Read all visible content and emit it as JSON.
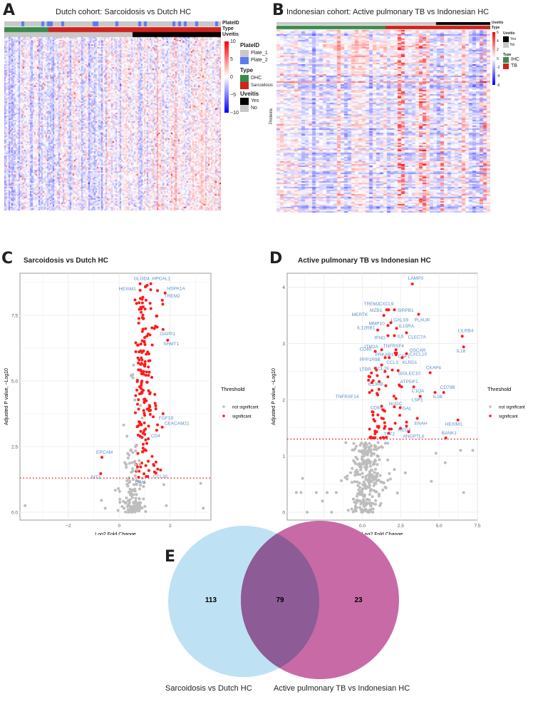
{
  "panels": {
    "a": "A",
    "b": "B",
    "c": "C",
    "d": "D",
    "e": "E"
  },
  "colors": {
    "sig": "#ff1a1a",
    "nonsig": "#bdbdbd",
    "label": "#5b8fc7",
    "heat_high": "#ff0000",
    "heat_low": "#0000ff",
    "green": "#3a8a4e",
    "red": "#d1221c",
    "black": "#000000",
    "gray": "#c8c8c8",
    "blue": "#5a7cf0",
    "venn_left": "#bfe1f4",
    "venn_right": "#c86aa6",
    "venn_overlap": "#8d5b96"
  },
  "heatmap_a": {
    "title": "Dutch cohort: Sarcoidosis vs Dutch HC",
    "annotation_rows": [
      "PlateID",
      "Type",
      "Uveitis"
    ],
    "colorbar_ticks": [
      "10",
      "5",
      "0",
      "−5",
      "−10"
    ],
    "legend": {
      "plate_title": "PlateID",
      "plate_items": [
        "Plate_1",
        "Plate_2"
      ],
      "type_title": "Type",
      "type_items": [
        "DHC",
        "Sarcoidosis"
      ],
      "uveitis_title": "Uveitis",
      "uveitis_items": [
        "Yes",
        "No"
      ]
    }
  },
  "heatmap_b": {
    "title": "Indonesian cohort: Active pulmonary TB vs Indonesian HC",
    "annotation_rows": [
      "Uveitis",
      "Type"
    ],
    "ylabel": "Proteins",
    "colorbar_ticks": [
      "6",
      "4",
      "2",
      "0",
      "-2",
      "-4",
      "-6"
    ],
    "legend": {
      "uveitis_title": "Uveitis",
      "uveitis_items": [
        "Yes",
        "No"
      ],
      "type_title": "Type",
      "type_items": [
        "IHC",
        "TB"
      ]
    }
  },
  "chart_data": [
    {
      "type": "scatter",
      "id": "volcano_c",
      "title": "Sarcoidosis  vs Dutch HC",
      "xlabel": "Log2 Fold Change",
      "ylabel": "Adjusted P value, −Log10",
      "xlim": [
        -3.9,
        3.6
      ],
      "ylim": [
        -0.3,
        9.1
      ],
      "xticks": [
        -2,
        0,
        2
      ],
      "xtick_labels": [
        "−2",
        "0",
        "2"
      ],
      "yticks": [
        0,
        2.5,
        5,
        7.5
      ],
      "ytick_labels": [
        "0.0",
        "2.5",
        "5.0",
        "7.5"
      ],
      "threshold": 1.3,
      "grid": true,
      "legend": {
        "title": "Threshold",
        "items": [
          "not significant",
          "significant"
        ],
        "placement": "right"
      },
      "n_significant": 192,
      "n_not_significant": 150,
      "labeled_points": [
        {
          "gene": "GLOD4",
          "x": 0.82,
          "y": 8.7
        },
        {
          "gene": "HPCAL1",
          "x": 1.24,
          "y": 8.7
        },
        {
          "gene": "HEXIM1",
          "x": 0.82,
          "y": 8.45
        },
        {
          "gene": "HSPA1A",
          "x": 1.8,
          "y": 8.35
        },
        {
          "gene": "TREM2",
          "x": 1.69,
          "y": 8.07
        },
        {
          "gene": "DAPP1",
          "x": 1.72,
          "y": 6.96
        },
        {
          "gene": "SHMT1",
          "x": 1.9,
          "y": 6.55
        },
        {
          "gene": "FGF19",
          "x": 1.72,
          "y": 3.75
        },
        {
          "gene": "CEACAM21",
          "x": 1.69,
          "y": 3.24
        },
        {
          "gene": "CD4",
          "x": 1.47,
          "y": 3.12
        },
        {
          "gene": "EPCAM",
          "x": -0.68,
          "y": 2.09
        },
        {
          "gene": "SIT1",
          "x": -0.73,
          "y": 1.47
        },
        {
          "gene": "ISM1",
          "x": 0.76,
          "y": 1.33
        },
        {
          "gene": "CCL20",
          "x": 1.44,
          "y": 1.49
        }
      ]
    },
    {
      "type": "scatter",
      "id": "volcano_d",
      "title": "Active pulmonary TB  vs Indonesian HC",
      "xlabel": "Log2 Fold Change",
      "ylabel": "Adjusted P value, −Log10",
      "xlim": [
        -4.9,
        7.5
      ],
      "ylim": [
        -0.14,
        4.25
      ],
      "xticks": [
        -2.5,
        0,
        2.5,
        5,
        7.5
      ],
      "xtick_labels": [
        "-2.5",
        "0.0",
        "2.5",
        "5.0",
        "7.5"
      ],
      "yticks": [
        0,
        1,
        2,
        3,
        4
      ],
      "ytick_labels": [
        "0",
        "1",
        "2",
        "3",
        "4"
      ],
      "threshold": 1.3,
      "grid": true,
      "legend": {
        "title": "Threshold",
        "items": [
          "not significant",
          "significant"
        ],
        "placement": "right"
      },
      "n_significant": 102,
      "n_not_significant": 300,
      "labeled_points": [
        {
          "gene": "LAMP3",
          "x": 3.26,
          "y": 4.06
        },
        {
          "gene": "TREM2",
          "x": 1.58,
          "y": 3.6
        },
        {
          "gene": "CXCL9",
          "x": 1.72,
          "y": 3.6
        },
        {
          "gene": "SIRPB1",
          "x": 2.09,
          "y": 3.6
        },
        {
          "gene": "MZB1",
          "x": 1.65,
          "y": 3.6
        },
        {
          "gene": "PLAUR",
          "x": 3.67,
          "y": 3.52
        },
        {
          "gene": "MERTK",
          "x": 1.4,
          "y": 3.5
        },
        {
          "gene": "LGALS9",
          "x": 1.86,
          "y": 3.37
        },
        {
          "gene": "MMP10",
          "x": 1.67,
          "y": 3.32
        },
        {
          "gene": "IL15RA",
          "x": 2.23,
          "y": 3.27
        },
        {
          "gene": "IL12RB1",
          "x": 1.0,
          "y": 3.24
        },
        {
          "gene": "IFNG",
          "x": 1.67,
          "y": 3.14
        },
        {
          "gene": "IL6",
          "x": 2.09,
          "y": 3.14
        },
        {
          "gene": "CLEC7A",
          "x": 2.88,
          "y": 3.19
        },
        {
          "gene": "LILRB4",
          "x": 6.51,
          "y": 3.13
        },
        {
          "gene": "IL18",
          "x": 6.6,
          "y": 2.94
        },
        {
          "gene": "ITM2A",
          "x": 1.26,
          "y": 2.89
        },
        {
          "gene": "TNFRSF4",
          "x": 2.19,
          "y": 2.89
        },
        {
          "gene": "OSCAR",
          "x": 2.23,
          "y": 2.83
        },
        {
          "gene": "CD40",
          "x": 0.84,
          "y": 2.86
        },
        {
          "gene": "PRKAB1",
          "x": 2.14,
          "y": 2.83
        },
        {
          "gene": "CSF1",
          "x": 2.2,
          "y": 2.8
        },
        {
          "gene": "CXCL10",
          "x": 2.88,
          "y": 2.82
        },
        {
          "gene": "PPP1R9B",
          "x": 1.49,
          "y": 2.75
        },
        {
          "gene": "CCL3",
          "x": 1.75,
          "y": 2.75
        },
        {
          "gene": "KLRD1",
          "x": 2.6,
          "y": 2.75
        },
        {
          "gene": "LTBR",
          "x": 1.26,
          "y": 2.62
        },
        {
          "gene": "CKAP4",
          "x": 4.42,
          "y": 2.48
        },
        {
          "gene": "CCL28",
          "x": 1.95,
          "y": 2.53
        },
        {
          "gene": "SIGLEC10",
          "x": 2.33,
          "y": 2.52
        },
        {
          "gene": "ATP5IF1",
          "x": 2.56,
          "y": 2.23
        },
        {
          "gene": "IL10RB",
          "x": 1.53,
          "y": 2.25
        },
        {
          "gene": "C1QA",
          "x": 3.35,
          "y": 2.23
        },
        {
          "gene": "CD79B",
          "x": 5.3,
          "y": 2.13
        },
        {
          "gene": "IL1B",
          "x": 4.74,
          "y": 2.13
        },
        {
          "gene": "TNFRSF14",
          "x": 0.47,
          "y": 2.13
        },
        {
          "gene": "LSP1",
          "x": 3.77,
          "y": 2.06
        },
        {
          "gene": "NUDC",
          "x": 2.19,
          "y": 2.02
        },
        {
          "gene": "CD83",
          "x": 0.7,
          "y": 1.78
        },
        {
          "gene": "GAL",
          "x": 2.47,
          "y": 1.86
        },
        {
          "gene": "REG4",
          "x": 2.88,
          "y": 1.53
        },
        {
          "gene": "ENAH",
          "x": 3.58,
          "y": 1.67
        },
        {
          "gene": "HEXIM1",
          "x": 6.23,
          "y": 1.64
        },
        {
          "gene": "TFF2",
          "x": 1.77,
          "y": 1.48
        },
        {
          "gene": "ANGPTL4",
          "x": 3.02,
          "y": 1.43
        },
        {
          "gene": "BANK1",
          "x": 5.44,
          "y": 1.32
        }
      ]
    },
    {
      "type": "venn",
      "id": "venn_e",
      "sets": [
        "Sarcoidosis vs Dutch HC",
        "Active pulmonary TB vs Indonesian HC"
      ],
      "only_left": "113",
      "overlap": "79",
      "only_right": "23"
    }
  ]
}
